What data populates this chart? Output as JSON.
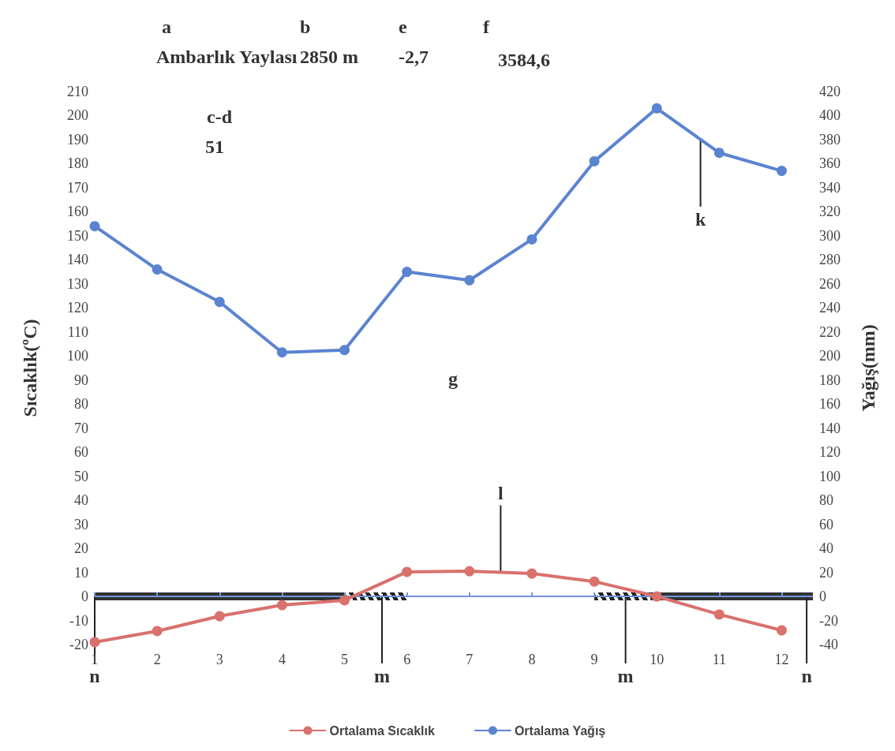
{
  "chart_data": {
    "type": "line",
    "x": [
      1,
      2,
      3,
      4,
      5,
      6,
      7,
      8,
      9,
      10,
      11,
      12
    ],
    "xlim": [
      1,
      12.5
    ],
    "xticks": [
      1,
      2,
      3,
      4,
      5,
      6,
      7,
      8,
      9,
      10,
      11,
      12
    ],
    "ylim": [
      -20,
      210
    ],
    "yticks": [
      -20,
      -10,
      0,
      10,
      20,
      30,
      40,
      50,
      60,
      70,
      80,
      90,
      100,
      110,
      120,
      130,
      140,
      150,
      160,
      170,
      180,
      190,
      200,
      210
    ],
    "y2lim": [
      -40,
      420
    ],
    "y2ticks": [
      -40,
      -20,
      0,
      20,
      40,
      60,
      80,
      100,
      120,
      140,
      160,
      180,
      200,
      220,
      240,
      260,
      280,
      300,
      320,
      340,
      360,
      380,
      400,
      420
    ],
    "ylabel": "Sıcaklık(ºC)",
    "y2label": "Yağış(mm)",
    "series": [
      {
        "name": "Ortalama Sıcaklık",
        "color": "#d9716c",
        "values": [
          -19,
          -14.4,
          -8.2,
          -3.6,
          -1.6,
          10.2,
          10.5,
          9.5,
          6.2,
          0,
          -7.5,
          -14.1
        ]
      },
      {
        "name": "Ortalama Yağış",
        "color": "#5b84d0",
        "axis": "y2",
        "values": [
          308,
          272,
          245,
          203,
          205,
          270,
          263,
          297,
          362,
          406,
          369,
          354
        ]
      }
    ],
    "annotations": [
      "a",
      "b",
      "e",
      "f",
      "Ambarlık Yaylası",
      "2850 m",
      "-2,7",
      "3584,6",
      "c-d",
      "51",
      "g",
      {
        "text": "k",
        "x": 10.7,
        "y": 190
      },
      {
        "text": "l",
        "x": 7.5,
        "y": 10
      },
      {
        "text": "n",
        "x": 1,
        "y": 0
      },
      {
        "text": "m",
        "x": 5.6,
        "y": 0
      },
      {
        "text": "m",
        "x": 9.5,
        "y": 0
      },
      {
        "text": "n",
        "x": 12.4,
        "y": 0
      }
    ],
    "ref_lines": [
      {
        "axis": "y",
        "value": 0,
        "color": "#6d95dc"
      }
    ],
    "marker": "circle",
    "line_style": "solid",
    "grid": false,
    "legend": "bottom"
  }
}
